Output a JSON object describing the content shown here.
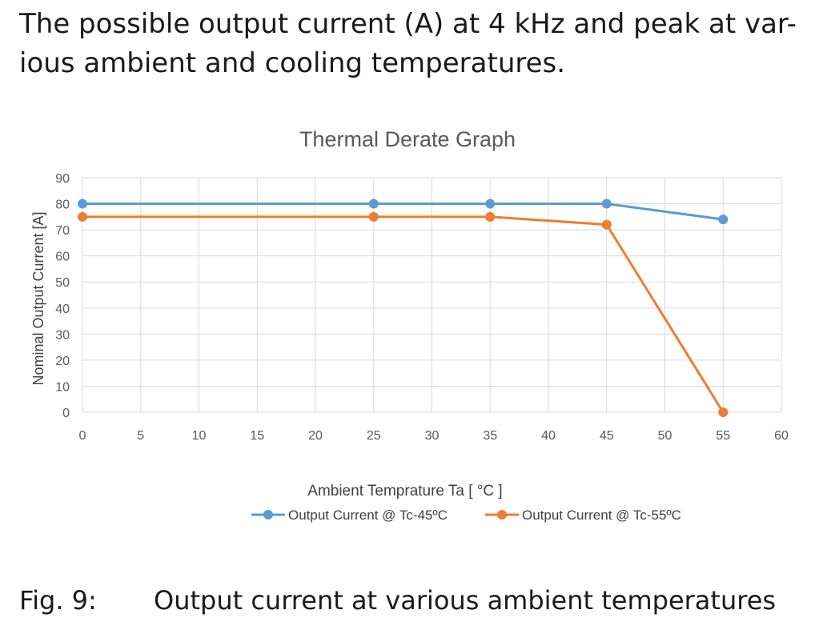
{
  "heading": {
    "line1": "The possible output current (A) at 4 kHz and peak at var-",
    "line2": "ious ambient and cooling temperatures."
  },
  "chart_data": {
    "type": "line",
    "title": "Thermal Derate Graph",
    "xlabel": "Ambient Temprature Ta [ °C ]",
    "ylabel": "Nominal Output Current [A]",
    "xlim": [
      0,
      60
    ],
    "ylim": [
      0,
      90
    ],
    "xticks": [
      0,
      5,
      10,
      15,
      20,
      25,
      30,
      35,
      40,
      45,
      50,
      55,
      60
    ],
    "yticks": [
      0,
      10,
      20,
      30,
      40,
      50,
      60,
      70,
      80,
      90
    ],
    "grid": true,
    "legend_position": "bottom",
    "series": [
      {
        "name": "Output Current @ Tc-45ºC",
        "color": "#5b9bd5",
        "x": [
          0,
          25,
          35,
          45,
          55
        ],
        "y": [
          80,
          80,
          80,
          80,
          74
        ]
      },
      {
        "name": "Output Current @ Tc-55ºC",
        "color": "#ed7d31",
        "x": [
          0,
          25,
          35,
          45,
          55
        ],
        "y": [
          75,
          75,
          75,
          72,
          0
        ]
      }
    ]
  },
  "caption": {
    "number": "Fig. 9:",
    "text": "Output current at various ambient temperatures"
  }
}
